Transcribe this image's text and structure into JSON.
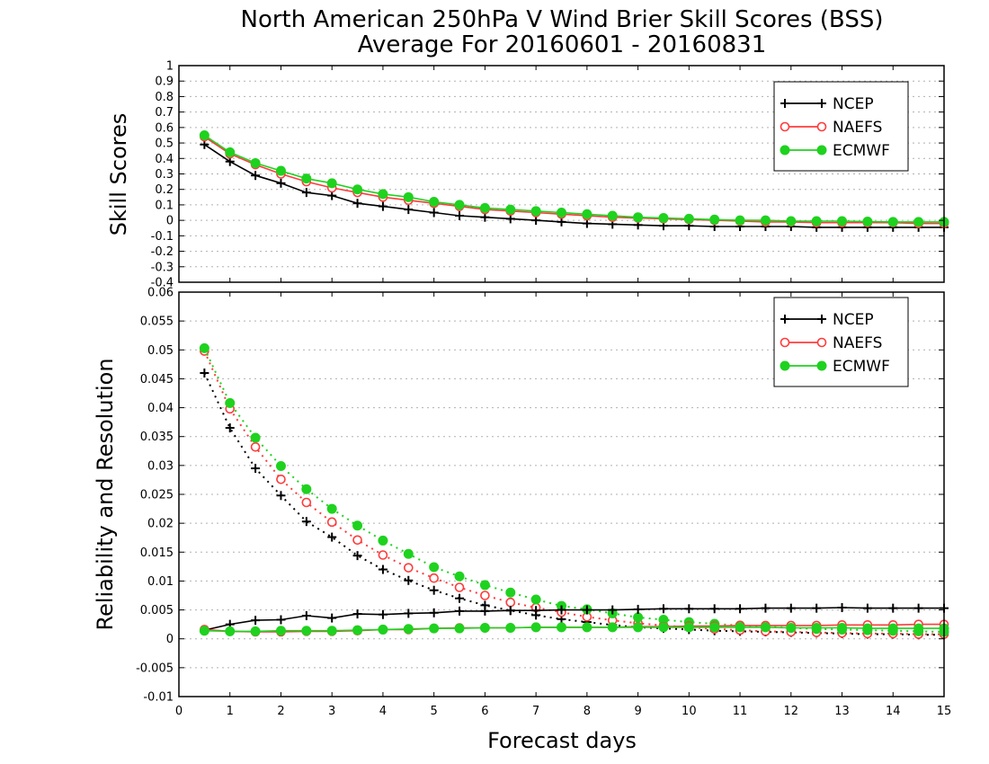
{
  "figure": {
    "title_line1": "North American 250hPa V Wind Brier Skill Scores (BSS)",
    "title_line2": "Average For 20160601 - 20160831",
    "xlabel": "Forecast days",
    "colors": {
      "NCEP": "#000000",
      "NAEFS": "#ff3b3b",
      "ECMWF": "#1fd21f",
      "grid": "#b0b0b0"
    }
  },
  "chart_data": [
    {
      "type": "line",
      "title": "North American 250hPa V Wind Brier Skill Scores (BSS)",
      "subtitle": "Average For 20160601 - 20160831",
      "xlabel": "",
      "ylabel": "Skill Scores",
      "xlim": [
        0,
        15
      ],
      "ylim": [
        -0.4,
        1
      ],
      "yticks": [
        "1",
        "0.9",
        "0.8",
        "0.7",
        "0.6",
        "0.5",
        "0.4",
        "0.3",
        "0.2",
        "0.1",
        "0",
        "-0.1",
        "-0.2",
        "-0.3",
        "-0.4"
      ],
      "grid": "horizontal dotted",
      "legend_position": "top-right",
      "x": [
        0.5,
        1,
        1.5,
        2,
        2.5,
        3,
        3.5,
        4,
        4.5,
        5,
        5.5,
        6,
        6.5,
        7,
        7.5,
        8,
        8.5,
        9,
        9.5,
        10,
        10.5,
        11,
        11.5,
        12,
        12.5,
        13,
        13.5,
        14,
        14.5,
        15
      ],
      "series": [
        {
          "name": "NCEP",
          "marker": "plus",
          "line": "solid",
          "values": [
            0.49,
            0.38,
            0.29,
            0.24,
            0.18,
            0.16,
            0.11,
            0.09,
            0.07,
            0.05,
            0.03,
            0.02,
            0.01,
            0.0,
            -0.01,
            -0.02,
            -0.025,
            -0.03,
            -0.035,
            -0.035,
            -0.04,
            -0.04,
            -0.04,
            -0.04,
            -0.045,
            -0.045,
            -0.045,
            -0.045,
            -0.045,
            -0.045
          ]
        },
        {
          "name": "NAEFS",
          "marker": "open-circle",
          "line": "solid",
          "values": [
            0.54,
            0.43,
            0.36,
            0.3,
            0.25,
            0.21,
            0.18,
            0.15,
            0.13,
            0.11,
            0.09,
            0.07,
            0.06,
            0.05,
            0.04,
            0.03,
            0.02,
            0.015,
            0.01,
            0.005,
            0.0,
            -0.005,
            -0.01,
            -0.01,
            -0.015,
            -0.015,
            -0.015,
            -0.015,
            -0.02,
            -0.02
          ]
        },
        {
          "name": "ECMWF",
          "marker": "filled-circle",
          "line": "solid",
          "values": [
            0.55,
            0.44,
            0.37,
            0.32,
            0.27,
            0.24,
            0.2,
            0.17,
            0.15,
            0.12,
            0.1,
            0.08,
            0.07,
            0.06,
            0.05,
            0.04,
            0.03,
            0.02,
            0.015,
            0.01,
            0.005,
            0.0,
            0.0,
            -0.005,
            -0.005,
            -0.005,
            -0.008,
            -0.01,
            -0.01,
            -0.01
          ]
        }
      ]
    },
    {
      "type": "line",
      "xlabel": "Forecast days",
      "ylabel": "Reliability and Resolution",
      "xlim": [
        0,
        15
      ],
      "ylim": [
        -0.01,
        0.06
      ],
      "xticks": [
        "0",
        "1",
        "2",
        "3",
        "4",
        "5",
        "6",
        "7",
        "8",
        "9",
        "10",
        "11",
        "12",
        "13",
        "14",
        "15"
      ],
      "yticks": [
        "0.06",
        "0.055",
        "0.05",
        "0.045",
        "0.04",
        "0.035",
        "0.03",
        "0.025",
        "0.02",
        "0.015",
        "0.01",
        "0.005",
        "0",
        "-0.005",
        "-0.01"
      ],
      "grid": "horizontal dotted",
      "legend_position": "top-right",
      "x": [
        0.5,
        1,
        1.5,
        2,
        2.5,
        3,
        3.5,
        4,
        4.5,
        5,
        5.5,
        6,
        6.5,
        7,
        7.5,
        8,
        8.5,
        9,
        9.5,
        10,
        10.5,
        11,
        11.5,
        12,
        12.5,
        13,
        13.5,
        14,
        14.5,
        15
      ],
      "series": [
        {
          "name": "NCEP",
          "component": "reliability",
          "marker": "plus",
          "line": "dotted",
          "values": [
            0.046,
            0.0365,
            0.0295,
            0.0248,
            0.0203,
            0.0176,
            0.0144,
            0.012,
            0.0101,
            0.0084,
            0.007,
            0.0058,
            0.0049,
            0.0041,
            0.0034,
            0.0029,
            0.0024,
            0.002,
            0.0018,
            0.0016,
            0.0014,
            0.0013,
            0.0012,
            0.0011,
            0.001,
            0.0009,
            0.0008,
            0.0008,
            0.0007,
            0.0007
          ]
        },
        {
          "name": "NAEFS",
          "component": "reliability",
          "marker": "open-circle",
          "line": "dotted",
          "values": [
            0.0498,
            0.0398,
            0.0332,
            0.0276,
            0.0236,
            0.0202,
            0.0171,
            0.0145,
            0.0123,
            0.0105,
            0.0089,
            0.0075,
            0.0063,
            0.0054,
            0.0046,
            0.0038,
            0.0032,
            0.0027,
            0.0023,
            0.002,
            0.0017,
            0.0015,
            0.0013,
            0.0012,
            0.0011,
            0.001,
            0.0009,
            0.0009,
            0.0008,
            0.0008
          ]
        },
        {
          "name": "ECMWF",
          "component": "reliability",
          "marker": "filled-circle",
          "line": "dotted",
          "values": [
            0.0503,
            0.0408,
            0.0348,
            0.0299,
            0.0259,
            0.0225,
            0.0196,
            0.017,
            0.0147,
            0.0124,
            0.0108,
            0.0093,
            0.008,
            0.0068,
            0.0057,
            0.0051,
            0.0044,
            0.0037,
            0.0033,
            0.0029,
            0.0026,
            0.0023,
            0.0021,
            0.0019,
            0.0017,
            0.0016,
            0.0015,
            0.0014,
            0.0013,
            0.0012
          ]
        },
        {
          "name": "NCEP",
          "component": "resolution",
          "marker": "plus",
          "line": "solid",
          "values": [
            0.0015,
            0.0025,
            0.0032,
            0.0033,
            0.004,
            0.0036,
            0.0043,
            0.0042,
            0.0044,
            0.0045,
            0.0048,
            0.0048,
            0.0049,
            0.0049,
            0.005,
            0.005,
            0.005,
            0.0051,
            0.0052,
            0.0052,
            0.0052,
            0.0052,
            0.0053,
            0.0053,
            0.0053,
            0.0054,
            0.0053,
            0.0053,
            0.0053,
            0.0053
          ]
        },
        {
          "name": "NAEFS",
          "component": "resolution",
          "marker": "open-circle",
          "line": "solid",
          "values": [
            0.0016,
            0.0013,
            0.0012,
            0.0012,
            0.0013,
            0.0013,
            0.0014,
            0.0016,
            0.0016,
            0.0018,
            0.0019,
            0.0019,
            0.0019,
            0.002,
            0.002,
            0.002,
            0.002,
            0.0021,
            0.0021,
            0.0022,
            0.0022,
            0.0023,
            0.0023,
            0.0023,
            0.0023,
            0.0024,
            0.0024,
            0.0024,
            0.0025,
            0.0025
          ]
        },
        {
          "name": "ECMWF",
          "component": "resolution",
          "marker": "filled-circle",
          "line": "solid",
          "values": [
            0.0014,
            0.0013,
            0.0013,
            0.0014,
            0.0014,
            0.0014,
            0.0015,
            0.0016,
            0.0017,
            0.0018,
            0.0018,
            0.0019,
            0.0019,
            0.002,
            0.002,
            0.002,
            0.002,
            0.002,
            0.002,
            0.002,
            0.002,
            0.002,
            0.002,
            0.0019,
            0.0019,
            0.0019,
            0.0018,
            0.0018,
            0.0018,
            0.0018
          ]
        }
      ]
    }
  ]
}
